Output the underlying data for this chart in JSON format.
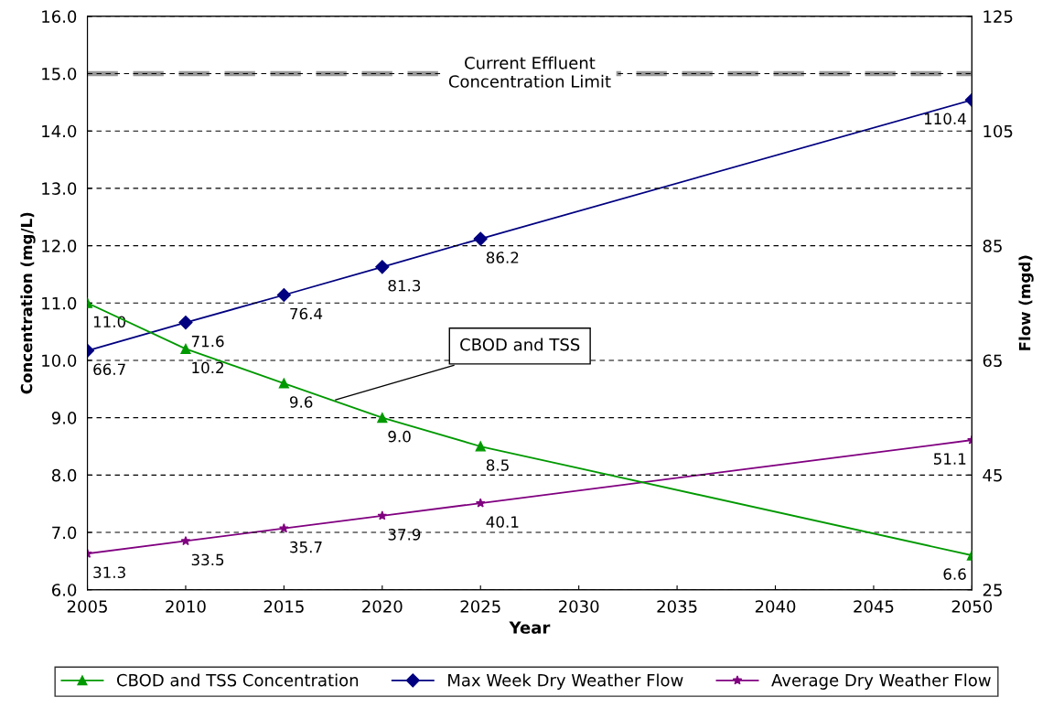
{
  "chart_data": {
    "type": "line",
    "xlabel": "Year",
    "ylabel": "Concentration (mg/L)",
    "y2label": "Flow (mgd)",
    "xlim": [
      2005,
      2050
    ],
    "xticks": [
      2005,
      2010,
      2015,
      2020,
      2025,
      2030,
      2035,
      2040,
      2045,
      2050
    ],
    "ylim": [
      6,
      16
    ],
    "yticks": [
      {
        "value": 6,
        "label": "6.0"
      },
      {
        "value": 7,
        "label": "7.0"
      },
      {
        "value": 8,
        "label": "8.0"
      },
      {
        "value": 9,
        "label": "9.0"
      },
      {
        "value": 10,
        "label": "10.0"
      },
      {
        "value": 11,
        "label": "11.0"
      },
      {
        "value": 12,
        "label": "12.0"
      },
      {
        "value": 13,
        "label": "13.0"
      },
      {
        "value": 14,
        "label": "14.0"
      },
      {
        "value": 15,
        "label": "15.0"
      },
      {
        "value": 16,
        "label": "16.0"
      }
    ],
    "y2lim": [
      25,
      125
    ],
    "y2ticks": [
      25,
      45,
      65,
      85,
      105,
      125
    ],
    "grid": "y",
    "legend": "bottom",
    "line_style": "solid",
    "x": [
      2005,
      2010,
      2015,
      2020,
      2025,
      2050
    ],
    "series": [
      {
        "name": "CBOD and TSS Concentration",
        "color": "#009900",
        "marker": "triangle",
        "values": [
          11.0,
          10.2,
          9.6,
          9.0,
          8.5,
          6.6
        ],
        "value_labels": [
          "11.0",
          "10.2",
          "9.6",
          "9.0",
          "8.5",
          "6.6"
        ]
      },
      {
        "name": "Max Week Dry Weather Flow",
        "color": "#000080",
        "marker": "diamond",
        "axis": "y2",
        "values": [
          66.7,
          71.6,
          76.4,
          81.3,
          86.2,
          110.4
        ],
        "value_labels": [
          "66.7",
          "71.6",
          "76.4",
          "81.3",
          "86.2",
          "110.4"
        ]
      },
      {
        "name": "Average Dry Weather Flow",
        "color": "#800080",
        "marker": "star",
        "axis": "y2",
        "values": [
          31.3,
          33.5,
          35.7,
          37.9,
          40.1,
          51.1
        ],
        "value_labels": [
          "31.3",
          "33.5",
          "35.7",
          "37.9",
          "40.1",
          "51.1"
        ]
      }
    ],
    "ref_lines": [
      {
        "axis": "y",
        "value": 15.0,
        "label": "Current Effluent\nConcentration Limit",
        "color": "#999999",
        "line_style": "dashed"
      }
    ],
    "annotations": [
      {
        "text": "CBOD and TSS",
        "x": 2017.5,
        "y": 9.3
      }
    ]
  }
}
